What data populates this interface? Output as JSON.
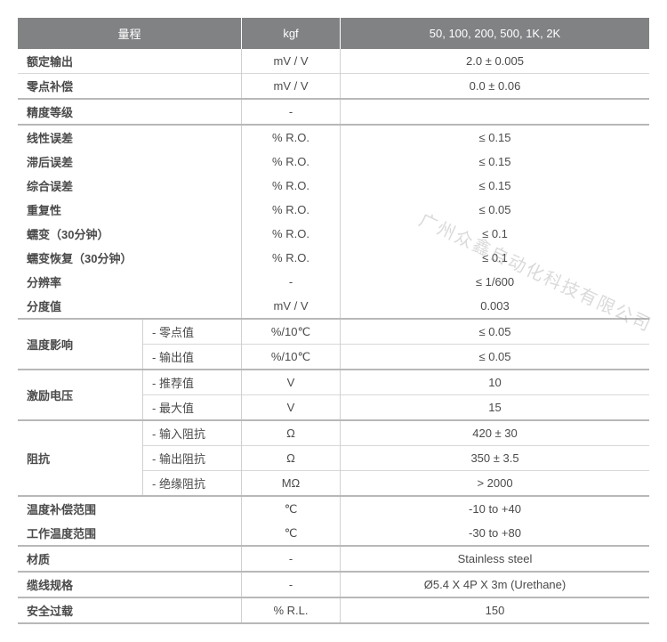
{
  "header": {
    "col1": "量程",
    "col2": "kgf",
    "col3": "50, 100, 200, 500, 1K, 2K"
  },
  "rows": {
    "rated_output": {
      "label": "额定输出",
      "unit": "mV / V",
      "value": "2.0 ± 0.005"
    },
    "zero_balance": {
      "label": "零点补偿",
      "unit": "mV / V",
      "value": "0.0 ± 0.06"
    },
    "accuracy": {
      "label": "精度等级",
      "unit": "-",
      "value": ""
    },
    "linearity": {
      "label": "线性误差",
      "unit": "% R.O.",
      "value": "≤ 0.15"
    },
    "hysteresis": {
      "label": "滞后误差",
      "unit": "% R.O.",
      "value": "≤ 0.15"
    },
    "combined": {
      "label": "综合误差",
      "unit": "% R.O.",
      "value": "≤ 0.15"
    },
    "repeat": {
      "label": "重复性",
      "unit": "% R.O.",
      "value": "≤ 0.05"
    },
    "creep": {
      "label": "蠕变（30分钟）",
      "unit": "% R.O.",
      "value": "≤ 0.1"
    },
    "creep_recovery": {
      "label": "蠕变恢复（30分钟）",
      "unit": "% R.O.",
      "value": "≤ 0.1"
    },
    "resolution": {
      "label": "分辨率",
      "unit": "-",
      "value": "≤ 1/600"
    },
    "division": {
      "label": "分度值",
      "unit": "mV / V",
      "value": "0.003"
    },
    "temp_effect": {
      "label": "温度影响",
      "zero": {
        "sub": "- 零点值",
        "unit": "%/10℃",
        "value": "≤ 0.05"
      },
      "output": {
        "sub": "- 输出值",
        "unit": "%/10℃",
        "value": "≤ 0.05"
      }
    },
    "excitation": {
      "label": "激励电压",
      "rec": {
        "sub": "- 推荐值",
        "unit": "V",
        "value": "10"
      },
      "max": {
        "sub": "- 最大值",
        "unit": "V",
        "value": "15"
      }
    },
    "impedance": {
      "label": "阻抗",
      "input": {
        "sub": "- 输入阻抗",
        "unit": "Ω",
        "value": "420 ± 30"
      },
      "output": {
        "sub": "- 输出阻抗",
        "unit": "Ω",
        "value": "350 ± 3.5"
      },
      "insul": {
        "sub": "- 绝缘阻抗",
        "unit": "MΩ",
        "value": "> 2000"
      }
    },
    "temp_comp": {
      "label": "温度补偿范围",
      "unit": "℃",
      "value": "-10 to +40"
    },
    "temp_op": {
      "label": "工作温度范围",
      "unit": "℃",
      "value": "-30 to +80"
    },
    "material": {
      "label": "材质",
      "unit": "-",
      "value": "Stainless steel"
    },
    "cable": {
      "label": "缆线规格",
      "unit": "-",
      "value": "Ø5.4 X 4P X 3m (Urethane)"
    },
    "overload": {
      "label": "安全过载",
      "unit": "% R.L.",
      "value": "150"
    }
  },
  "watermark": "广州众鑫自动化科技有限公司"
}
